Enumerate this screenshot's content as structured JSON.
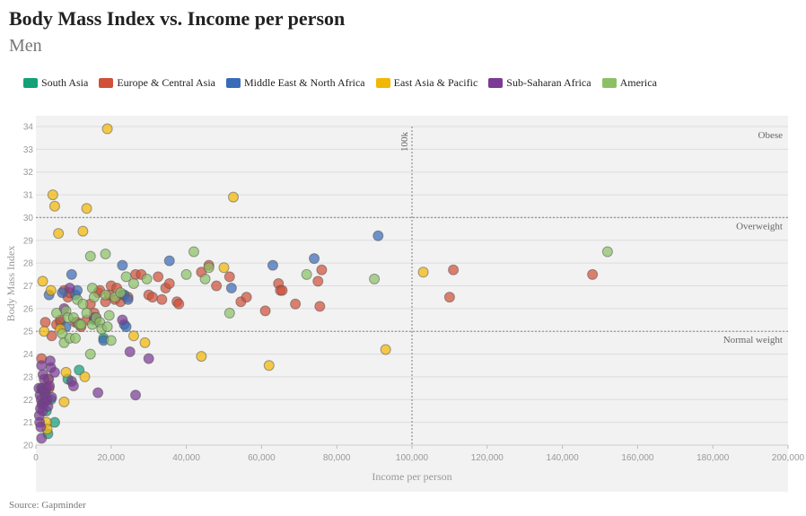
{
  "title": "Body Mass Index vs. Income per person",
  "subtitle": "Men",
  "source": "Source: Gapminder",
  "legend": [
    {
      "name": "South Asia",
      "color": "#13a07a"
    },
    {
      "name": "Europe & Central Asia",
      "color": "#d0503a"
    },
    {
      "name": "Middle East & North Africa",
      "color": "#3a6bb8"
    },
    {
      "name": "East Asia & Pacific",
      "color": "#f2b705"
    },
    {
      "name": "Sub-Saharan Africa",
      "color": "#7b3a96"
    },
    {
      "name": "America",
      "color": "#8cc066"
    }
  ],
  "chart_data": {
    "type": "scatter",
    "title": "Body Mass Index vs. Income per person",
    "subtitle": "Men",
    "xlabel": "Income per person",
    "ylabel": "Body Mass Index",
    "xlim": [
      0,
      200000
    ],
    "ylim": [
      20,
      34
    ],
    "x_ticks": [
      "0",
      "20,000",
      "40,000",
      "60,000",
      "80,000",
      "100,000",
      "120,000",
      "140,000",
      "160,000",
      "180,000",
      "200,000"
    ],
    "y_ticks": [
      "20",
      "21",
      "22",
      "23",
      "24",
      "25",
      "26",
      "27",
      "28",
      "29",
      "30",
      "31",
      "32",
      "33",
      "34"
    ],
    "grid": true,
    "legend_position": "top-left",
    "reference_lines": [
      {
        "axis": "y",
        "value": 30,
        "label": "Overweight"
      },
      {
        "axis": "y",
        "value": 25,
        "label": "Normal weight"
      },
      {
        "axis": "x",
        "value": 100000,
        "label": "100k"
      }
    ],
    "annotations": [
      "Obese",
      "Overweight",
      "Normal weight",
      "100k"
    ],
    "series": [
      {
        "name": "South Asia",
        "points": [
          [
            1500,
            22.5
          ],
          [
            2000,
            21.8
          ],
          [
            2800,
            21.5
          ],
          [
            3200,
            20.5
          ],
          [
            4000,
            22.0
          ],
          [
            5000,
            21.0
          ],
          [
            6500,
            25.4
          ],
          [
            8500,
            22.9
          ],
          [
            11500,
            23.3
          ],
          [
            18000,
            24.7
          ]
        ]
      },
      {
        "name": "Europe & Central Asia",
        "points": [
          [
            1500,
            23.8
          ],
          [
            2500,
            25.4
          ],
          [
            3500,
            22.5
          ],
          [
            4200,
            24.8
          ],
          [
            5500,
            25.3
          ],
          [
            6500,
            25.5
          ],
          [
            7500,
            26.8
          ],
          [
            8500,
            26.5
          ],
          [
            9000,
            26.7
          ],
          [
            10500,
            25.4
          ],
          [
            11000,
            25.4
          ],
          [
            12000,
            25.2
          ],
          [
            13500,
            25.5
          ],
          [
            14500,
            26.2
          ],
          [
            15500,
            25.8
          ],
          [
            16000,
            25.5
          ],
          [
            16500,
            26.7
          ],
          [
            17000,
            26.8
          ],
          [
            18500,
            26.3
          ],
          [
            19500,
            26.6
          ],
          [
            20000,
            27.0
          ],
          [
            21000,
            26.4
          ],
          [
            21500,
            26.9
          ],
          [
            22500,
            26.3
          ],
          [
            23000,
            26.6
          ],
          [
            24500,
            26.5
          ],
          [
            26500,
            27.5
          ],
          [
            28000,
            27.5
          ],
          [
            30000,
            26.6
          ],
          [
            31000,
            26.5
          ],
          [
            32500,
            27.4
          ],
          [
            33500,
            26.4
          ],
          [
            34500,
            26.9
          ],
          [
            35500,
            27.1
          ],
          [
            37500,
            26.3
          ],
          [
            38000,
            26.2
          ],
          [
            44000,
            27.6
          ],
          [
            46000,
            27.9
          ],
          [
            48000,
            27.0
          ],
          [
            51500,
            27.4
          ],
          [
            54500,
            26.3
          ],
          [
            56000,
            26.5
          ],
          [
            61000,
            25.9
          ],
          [
            64500,
            27.1
          ],
          [
            65000,
            26.8
          ],
          [
            65500,
            26.8
          ],
          [
            69000,
            26.2
          ],
          [
            75000,
            27.2
          ],
          [
            75500,
            26.1
          ],
          [
            76000,
            27.7
          ],
          [
            110000,
            26.5
          ],
          [
            111000,
            27.7
          ],
          [
            148000,
            27.5
          ]
        ]
      },
      {
        "name": "Middle East & North Africa",
        "points": [
          [
            3500,
            26.6
          ],
          [
            7000,
            26.7
          ],
          [
            8000,
            25.2
          ],
          [
            9500,
            27.5
          ],
          [
            10500,
            26.6
          ],
          [
            11000,
            26.8
          ],
          [
            15500,
            25.5
          ],
          [
            18000,
            24.6
          ],
          [
            23000,
            27.9
          ],
          [
            23500,
            26.6
          ],
          [
            23500,
            25.3
          ],
          [
            24000,
            25.2
          ],
          [
            24500,
            26.4
          ],
          [
            35500,
            28.1
          ],
          [
            52000,
            26.9
          ],
          [
            63000,
            27.9
          ],
          [
            74000,
            28.2
          ],
          [
            91000,
            29.2
          ]
        ]
      },
      {
        "name": "East Asia & Pacific",
        "points": [
          [
            1800,
            27.2
          ],
          [
            2200,
            25.0
          ],
          [
            2800,
            21.0
          ],
          [
            3000,
            20.7
          ],
          [
            3200,
            22.9
          ],
          [
            4000,
            26.8
          ],
          [
            4500,
            31.0
          ],
          [
            5000,
            30.5
          ],
          [
            6000,
            29.3
          ],
          [
            6500,
            25.1
          ],
          [
            7500,
            21.9
          ],
          [
            8000,
            23.2
          ],
          [
            12500,
            29.4
          ],
          [
            13000,
            23.0
          ],
          [
            13500,
            30.4
          ],
          [
            19000,
            33.9
          ],
          [
            26000,
            24.8
          ],
          [
            29000,
            24.5
          ],
          [
            44000,
            23.9
          ],
          [
            50000,
            27.8
          ],
          [
            52500,
            30.9
          ],
          [
            62000,
            23.5
          ],
          [
            93000,
            24.2
          ],
          [
            103000,
            27.6
          ]
        ]
      },
      {
        "name": "Sub-Saharan Africa",
        "points": [
          [
            800,
            22.5
          ],
          [
            900,
            21.3
          ],
          [
            1000,
            21.0
          ],
          [
            1100,
            22.2
          ],
          [
            1200,
            21.6
          ],
          [
            1300,
            20.8
          ],
          [
            1400,
            22.0
          ],
          [
            1500,
            23.5
          ],
          [
            1500,
            20.3
          ],
          [
            1600,
            21.8
          ],
          [
            1700,
            22.5
          ],
          [
            1800,
            21.5
          ],
          [
            1900,
            23.1
          ],
          [
            2000,
            22.4
          ],
          [
            2200,
            22.9
          ],
          [
            2400,
            21.9
          ],
          [
            2500,
            22.3
          ],
          [
            2600,
            22.1
          ],
          [
            2800,
            22.5
          ],
          [
            3000,
            22.0
          ],
          [
            3200,
            21.7
          ],
          [
            3400,
            22.9
          ],
          [
            3600,
            22.6
          ],
          [
            3800,
            23.7
          ],
          [
            4000,
            23.4
          ],
          [
            4200,
            22.1
          ],
          [
            5000,
            23.2
          ],
          [
            7500,
            26.0
          ],
          [
            9000,
            26.9
          ],
          [
            9500,
            22.8
          ],
          [
            10000,
            22.6
          ],
          [
            15500,
            25.6
          ],
          [
            16000,
            25.6
          ],
          [
            16500,
            22.3
          ],
          [
            23000,
            25.5
          ],
          [
            25000,
            24.1
          ],
          [
            26500,
            22.2
          ],
          [
            30000,
            23.8
          ]
        ]
      },
      {
        "name": "America",
        "points": [
          [
            5500,
            25.8
          ],
          [
            7000,
            24.9
          ],
          [
            7500,
            24.5
          ],
          [
            8000,
            25.9
          ],
          [
            8500,
            25.6
          ],
          [
            9000,
            24.7
          ],
          [
            10000,
            25.6
          ],
          [
            10500,
            24.7
          ],
          [
            11000,
            26.4
          ],
          [
            11500,
            25.3
          ],
          [
            12000,
            25.3
          ],
          [
            12500,
            26.2
          ],
          [
            13500,
            25.8
          ],
          [
            14500,
            24.0
          ],
          [
            15000,
            26.9
          ],
          [
            15000,
            25.3
          ],
          [
            15500,
            26.5
          ],
          [
            16000,
            25.6
          ],
          [
            17000,
            25.4
          ],
          [
            17500,
            25.1
          ],
          [
            18500,
            28.4
          ],
          [
            18500,
            26.6
          ],
          [
            19000,
            25.2
          ],
          [
            19500,
            25.7
          ],
          [
            20000,
            24.6
          ],
          [
            21000,
            26.5
          ],
          [
            22500,
            26.7
          ],
          [
            24000,
            27.4
          ],
          [
            26000,
            27.1
          ],
          [
            29500,
            27.3
          ],
          [
            40000,
            27.5
          ],
          [
            42000,
            28.5
          ],
          [
            45000,
            27.3
          ],
          [
            46000,
            27.8
          ],
          [
            51500,
            25.8
          ],
          [
            72000,
            27.5
          ],
          [
            90000,
            27.3
          ],
          [
            152000,
            28.5
          ],
          [
            14500,
            28.3
          ]
        ]
      }
    ]
  }
}
